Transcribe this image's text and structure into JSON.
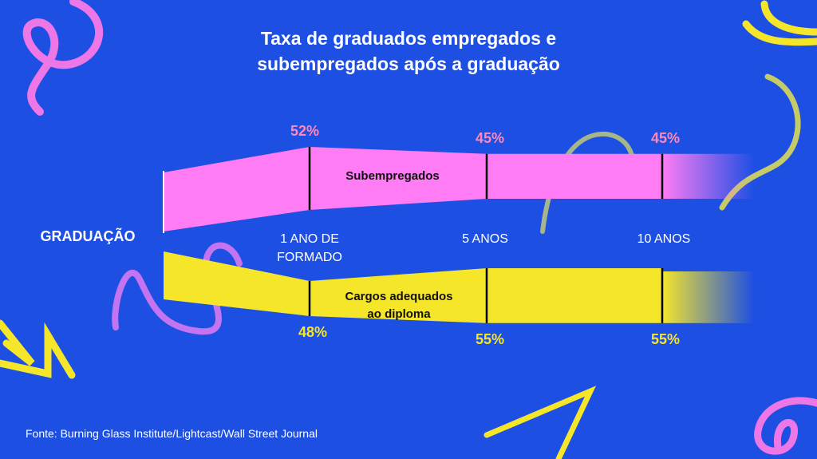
{
  "title_line1": "Taxa de graduados empregados e",
  "title_line2": "subempregados após a graduação",
  "source": "Fonte: Burning Glass Institute/Lightcast/Wall Street Journal",
  "colors": {
    "background": "#1d4fe3",
    "pink": "#ff7cf5",
    "yellow": "#f5e62a",
    "pink_label": "#ff88b8",
    "white": "#ffffff"
  },
  "chart_data": {
    "type": "area",
    "origin_label": "GRADUAÇÃO",
    "categories": [
      "1 ANO DE FORMADO",
      "5 ANOS",
      "10 ANOS"
    ],
    "category_lines": [
      [
        "1 ANO DE",
        "FORMADO"
      ],
      [
        "5 ANOS"
      ],
      [
        "10 ANOS"
      ]
    ],
    "series": [
      {
        "name": "Subempregados",
        "values": [
          52,
          45,
          45
        ],
        "labels": [
          "52%",
          "45%",
          "45%"
        ]
      },
      {
        "name_lines": [
          "Cargos adequados",
          "ao diploma"
        ],
        "values": [
          48,
          55,
          55
        ],
        "labels": [
          "48%",
          "55%",
          "55%"
        ]
      }
    ]
  }
}
